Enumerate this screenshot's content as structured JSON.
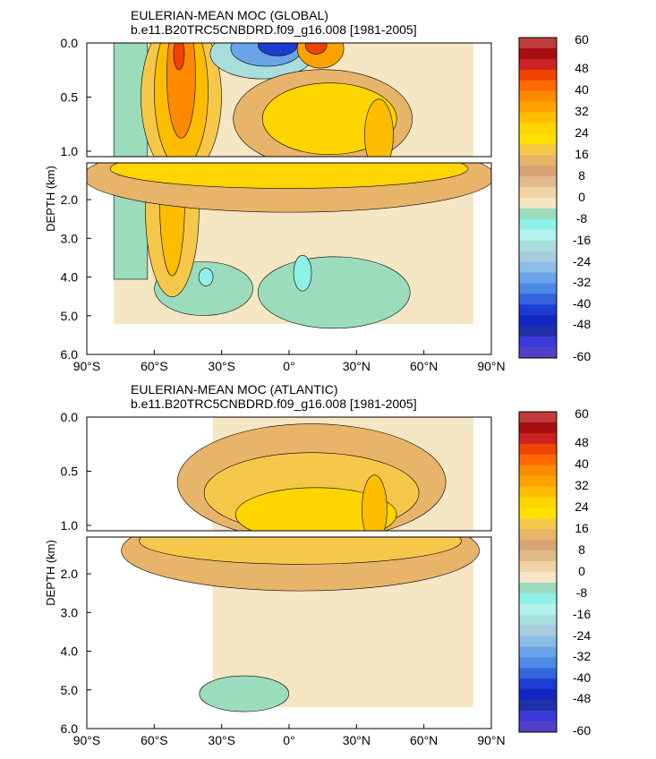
{
  "chart_data": [
    {
      "type": "heatmap",
      "title": "EULERIAN-MEAN MOC (GLOBAL)",
      "subtitle": "b.e11.B20TRC5CNBDRD.f09_g16.008 [1981-2005]",
      "ylabel": "DEPTH (km)",
      "x_ticks": [
        "90°S",
        "60°S",
        "30°S",
        "0°",
        "30°N",
        "60°N",
        "90°N"
      ],
      "y_ticks_upper": [
        "0.0",
        "0.5",
        "1.0"
      ],
      "y_ticks_lower": [
        "2.0",
        "3.0",
        "4.0",
        "5.0",
        "6.0"
      ],
      "xlim": [
        -90,
        90
      ],
      "ylim_km": [
        0,
        6
      ],
      "colorbar_labels": [
        "60",
        "48",
        "40",
        "32",
        "24",
        "16",
        "8",
        "0",
        "-8",
        "-16",
        "-24",
        "-32",
        "-40",
        "-48",
        "-60"
      ],
      "features": [
        {
          "name": "southern-ocean-positive-cell",
          "lat": -48,
          "depth_km": 0.3,
          "value_sv": 40
        },
        {
          "name": "deacon-deep-cell",
          "lat": -55,
          "depth_km": 2.5,
          "value_sv": 28
        },
        {
          "name": "southern-subtropical-negative-cell",
          "lat": -15,
          "depth_km": 0.1,
          "value_sv": -44
        },
        {
          "name": "northern-subtropical-positive-cell",
          "lat": 12,
          "depth_km": 0.1,
          "value_sv": 36
        },
        {
          "name": "amoc-core",
          "lat": 40,
          "depth_km": 0.9,
          "value_sv": 24
        },
        {
          "name": "deep-southern-negative-cell",
          "lat": -35,
          "depth_km": 4.0,
          "value_sv": -8
        },
        {
          "name": "abyssal-equatorial-negative-cell",
          "lat": 5,
          "depth_km": 3.8,
          "value_sv": -8
        }
      ]
    },
    {
      "type": "heatmap",
      "title": "EULERIAN-MEAN MOC (ATLANTIC)",
      "subtitle": "b.e11.B20TRC5CNBDRD.f09_g16.008 [1981-2005]",
      "ylabel": "DEPTH (km)",
      "x_ticks": [
        "90°S",
        "60°S",
        "30°S",
        "0°",
        "30°N",
        "60°N",
        "90°N"
      ],
      "y_ticks_upper": [
        "0.0",
        "0.5",
        "1.0"
      ],
      "y_ticks_lower": [
        "2.0",
        "3.0",
        "4.0",
        "5.0",
        "6.0"
      ],
      "xlim": [
        -90,
        90
      ],
      "ylim_km": [
        0,
        6
      ],
      "colorbar_labels": [
        "60",
        "48",
        "40",
        "32",
        "24",
        "16",
        "8",
        "0",
        "-8",
        "-16",
        "-24",
        "-32",
        "-40",
        "-48",
        "-60"
      ],
      "features": [
        {
          "name": "amoc-upper-cell",
          "lat": 10,
          "depth_km": 0.8,
          "value_sv": 20
        },
        {
          "name": "amoc-core",
          "lat": 38,
          "depth_km": 0.9,
          "value_sv": 24
        },
        {
          "name": "aabw-negative-cell",
          "lat": -25,
          "depth_km": 5.0,
          "value_sv": -2
        }
      ]
    }
  ],
  "colorbar": {
    "colors": [
      "#c03c3c",
      "#a60f0f",
      "#cc2222",
      "#ee4400",
      "#ff6a00",
      "#ff8a00",
      "#ffa200",
      "#ffbd00",
      "#ffd500",
      "#ffe000",
      "#f5c84a",
      "#e8b46a",
      "#d6a472",
      "#e2bb8a",
      "#f0d4a6",
      "#f5e6c4",
      "#9bdcbc",
      "#8ff0e6",
      "#b4f2ee",
      "#a8dede",
      "#a8ccdc",
      "#8cbde6",
      "#6aa4e8",
      "#4c8ae6",
      "#3464dc",
      "#1c3cd2",
      "#1226c4",
      "#2030a8",
      "#3a3ad8",
      "#5040c8"
    ]
  }
}
